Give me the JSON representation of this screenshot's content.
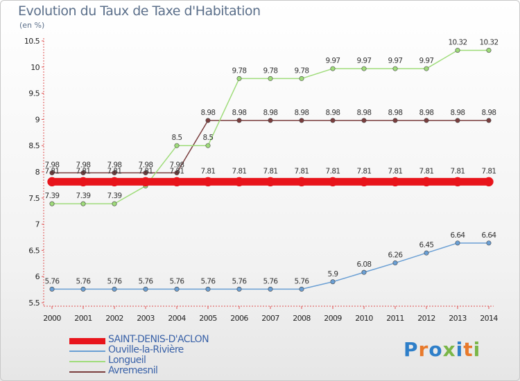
{
  "title": "Evolution du Taux de Taxe d'Habitation",
  "subtitle": "(en %)",
  "logo": {
    "text": "Proxiti",
    "colors": [
      "#2e7fc9",
      "#e8792b",
      "#2e7fc9",
      "#7ab648",
      "#2e7fc9",
      "#e8792b",
      "#7ab648"
    ]
  },
  "chart_data": {
    "type": "line",
    "x": [
      "2000",
      "2001",
      "2002",
      "2003",
      "2004",
      "2005",
      "2006",
      "2007",
      "2008",
      "2009",
      "2010",
      "2011",
      "2012",
      "2013",
      "2014"
    ],
    "ylim": [
      5.5,
      10.5
    ],
    "yticks": [
      "5.5",
      "6",
      "6.5",
      "7",
      "7.5",
      "8",
      "8.5",
      "9",
      "9.5",
      "10",
      "10.5"
    ],
    "grid": false,
    "legend_position": "bottom-left",
    "series": [
      {
        "name": "SAINT-DENIS-D'ACLON",
        "color": "#e8141b",
        "values": [
          7.81,
          7.81,
          7.81,
          7.81,
          7.81,
          7.81,
          7.81,
          7.81,
          7.81,
          7.81,
          7.81,
          7.81,
          7.81,
          7.81,
          7.81
        ],
        "labels": [
          "7.81",
          "7.81",
          "7.81",
          "7.81",
          "7.81",
          "7.81",
          "7.81",
          "7.81",
          "7.81",
          "7.81",
          "7.81",
          "7.81",
          "7.81",
          "7.81",
          "7.81"
        ]
      },
      {
        "name": "Ouville-la-Rivière",
        "color": "#6a9fd4",
        "values": [
          5.76,
          5.76,
          5.76,
          5.76,
          5.76,
          5.76,
          5.76,
          5.76,
          5.76,
          5.9,
          6.08,
          6.26,
          6.45,
          6.64,
          6.64
        ],
        "labels": [
          "5.76",
          "5.76",
          "5.76",
          "5.76",
          "5.76",
          "5.76",
          "5.76",
          "5.76",
          "5.76",
          "5.9",
          "6.08",
          "6.26",
          "6.45",
          "6.64",
          "6.64"
        ]
      },
      {
        "name": "Longueil",
        "color": "#9fdc7a",
        "values": [
          7.39,
          7.39,
          7.39,
          7.73,
          8.5,
          8.5,
          9.78,
          9.78,
          9.78,
          9.97,
          9.97,
          9.97,
          9.97,
          10.32,
          10.32
        ],
        "labels": [
          "7.39",
          "7.39",
          "7.39",
          "",
          "8.5",
          "8.5",
          "9.78",
          "9.78",
          "9.78",
          "9.97",
          "9.97",
          "9.97",
          "9.97",
          "10.32",
          "10.32"
        ]
      },
      {
        "name": "Avremesnil",
        "color": "#7a3e3e",
        "values": [
          7.98,
          7.98,
          7.98,
          7.98,
          7.98,
          8.98,
          8.98,
          8.98,
          8.98,
          8.98,
          8.98,
          8.98,
          8.98,
          8.98,
          8.98
        ],
        "labels": [
          "7.98",
          "7.98",
          "7.98",
          "7.98",
          "7.98",
          "8.98",
          "8.98",
          "8.98",
          "8.98",
          "8.98",
          "8.98",
          "8.98",
          "8.98",
          "8.98",
          "8.98"
        ]
      }
    ]
  }
}
